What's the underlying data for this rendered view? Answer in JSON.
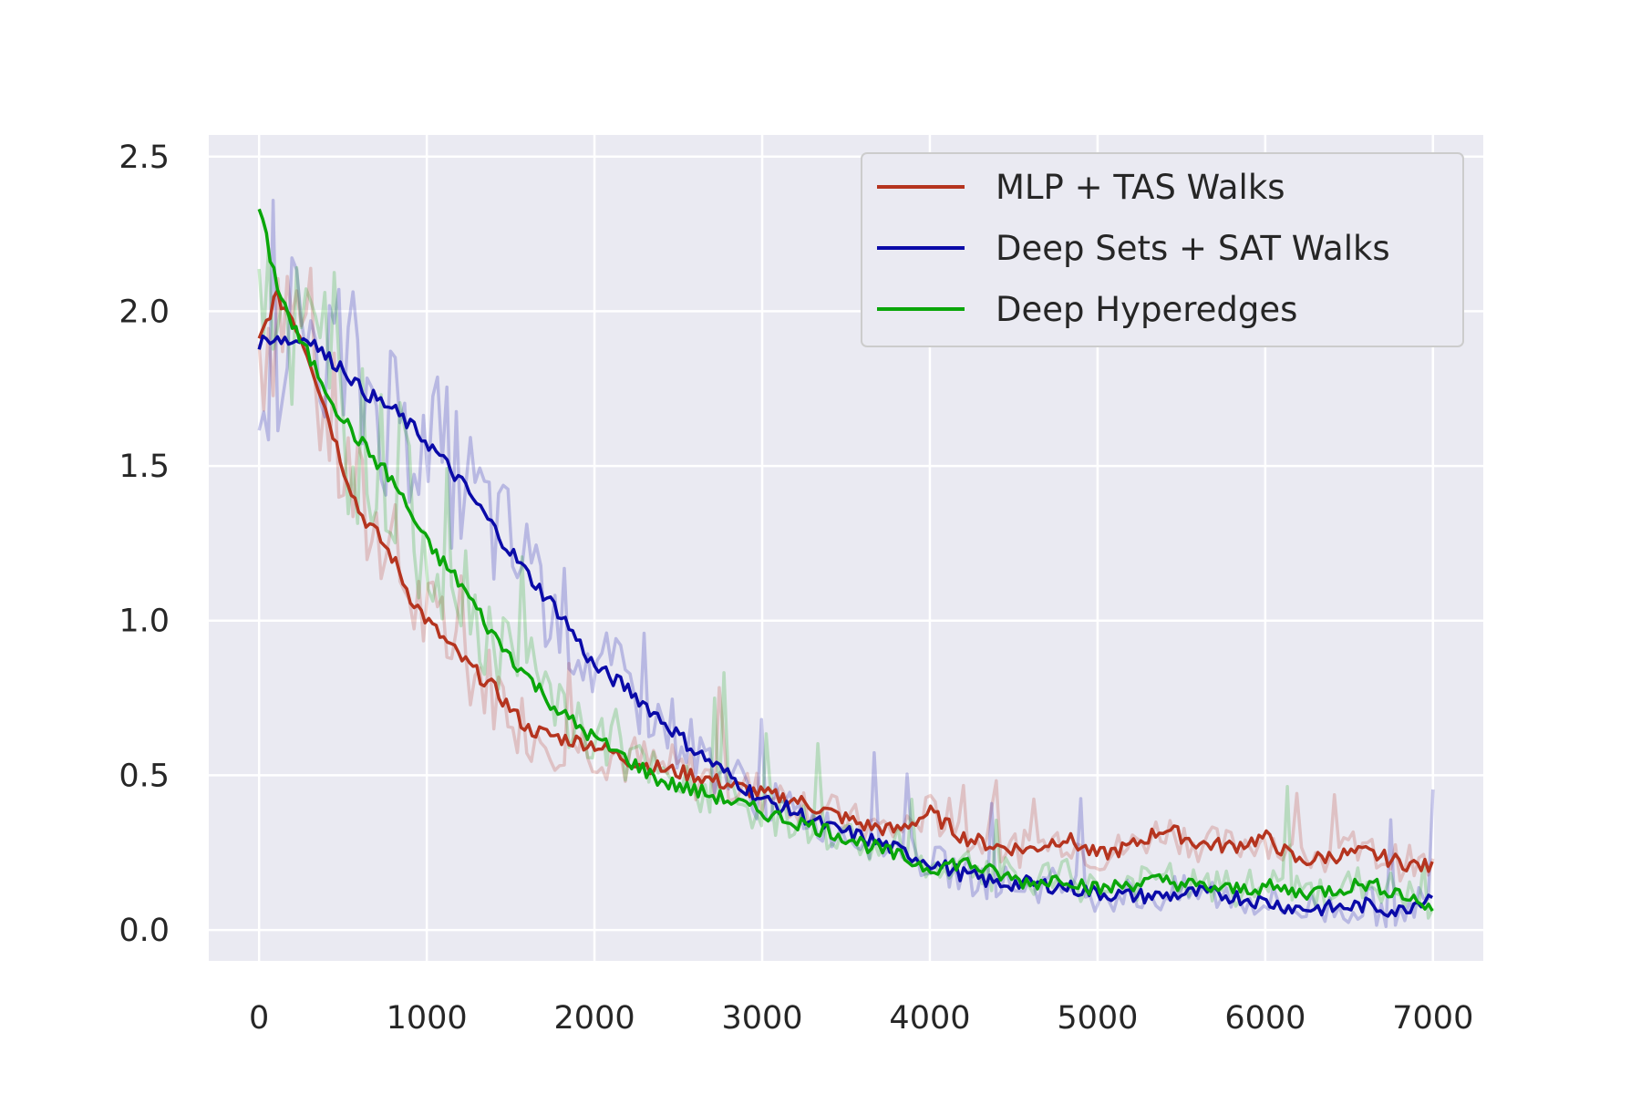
{
  "chart_data": {
    "type": "line",
    "title": "",
    "xlabel": "",
    "ylabel": "",
    "xlim": [
      -300,
      7300
    ],
    "ylim": [
      -0.1,
      2.57
    ],
    "xticks": [
      0,
      1000,
      2000,
      3000,
      4000,
      5000,
      6000,
      7000
    ],
    "xtick_labels": [
      "0",
      "1000",
      "2000",
      "3000",
      "4000",
      "5000",
      "6000",
      "7000"
    ],
    "yticks": [
      0.0,
      0.5,
      1.0,
      1.5,
      2.0,
      2.5
    ],
    "ytick_labels": [
      "0.0",
      "0.5",
      "1.0",
      "1.5",
      "2.0",
      "2.5"
    ],
    "grid": true,
    "legend_position": "top-right",
    "background": "#eaeaf2",
    "note_raw_traces": "each series is drawn as a noisy faint raw trace plus a bold smoothed line",
    "series": [
      {
        "name": "MLP + TAS Walks",
        "color": "#b5341f",
        "x": [
          0,
          100,
          200,
          300,
          400,
          500,
          600,
          700,
          800,
          900,
          1000,
          1200,
          1400,
          1600,
          1800,
          2000,
          2200,
          2400,
          2600,
          2800,
          3000,
          3200,
          3400,
          3600,
          3800,
          4000,
          4200,
          4400,
          4600,
          4800,
          5000,
          5200,
          5400,
          5600,
          5800,
          6000,
          6200,
          6400,
          6600,
          6800,
          7000
        ],
        "values": [
          1.9,
          2.05,
          1.98,
          1.85,
          1.68,
          1.5,
          1.35,
          1.28,
          1.2,
          1.08,
          1.0,
          0.88,
          0.78,
          0.65,
          0.62,
          0.6,
          0.55,
          0.52,
          0.5,
          0.47,
          0.44,
          0.42,
          0.38,
          0.34,
          0.32,
          0.38,
          0.3,
          0.27,
          0.26,
          0.3,
          0.24,
          0.27,
          0.33,
          0.28,
          0.27,
          0.3,
          0.22,
          0.24,
          0.25,
          0.22,
          0.2
        ]
      },
      {
        "name": "Deep Sets + SAT Walks",
        "color": "#0a0aa8",
        "x": [
          0,
          100,
          200,
          300,
          400,
          500,
          600,
          800,
          1000,
          1200,
          1400,
          1600,
          1800,
          2000,
          2200,
          2400,
          2600,
          2800,
          3000,
          3200,
          3400,
          3600,
          3800,
          4000,
          4200,
          4400,
          4600,
          4800,
          5000,
          5200,
          5400,
          5600,
          5800,
          6000,
          6200,
          6400,
          6600,
          6800,
          7000
        ],
        "values": [
          1.9,
          1.92,
          1.9,
          1.92,
          1.85,
          1.82,
          1.75,
          1.68,
          1.58,
          1.45,
          1.3,
          1.15,
          1.02,
          0.85,
          0.78,
          0.68,
          0.58,
          0.5,
          0.42,
          0.38,
          0.33,
          0.3,
          0.26,
          0.22,
          0.18,
          0.15,
          0.15,
          0.14,
          0.12,
          0.11,
          0.11,
          0.12,
          0.11,
          0.09,
          0.07,
          0.07,
          0.08,
          0.06,
          0.12
        ]
      },
      {
        "name": "Deep Hyperedges",
        "color": "#0aa60a",
        "x": [
          0,
          100,
          200,
          300,
          400,
          500,
          600,
          800,
          1000,
          1200,
          1400,
          1600,
          1800,
          2000,
          2200,
          2400,
          2600,
          2800,
          3000,
          3200,
          3400,
          3600,
          3800,
          4000,
          4200,
          4400,
          4600,
          4800,
          5000,
          5200,
          5400,
          5600,
          5800,
          6000,
          6200,
          6400,
          6600,
          6800,
          7000
        ],
        "values": [
          2.33,
          2.1,
          1.95,
          1.85,
          1.75,
          1.65,
          1.58,
          1.45,
          1.25,
          1.12,
          0.95,
          0.82,
          0.7,
          0.62,
          0.55,
          0.48,
          0.45,
          0.42,
          0.38,
          0.35,
          0.32,
          0.28,
          0.24,
          0.2,
          0.22,
          0.18,
          0.15,
          0.17,
          0.13,
          0.15,
          0.16,
          0.14,
          0.13,
          0.14,
          0.12,
          0.13,
          0.15,
          0.12,
          0.07
        ]
      }
    ]
  }
}
